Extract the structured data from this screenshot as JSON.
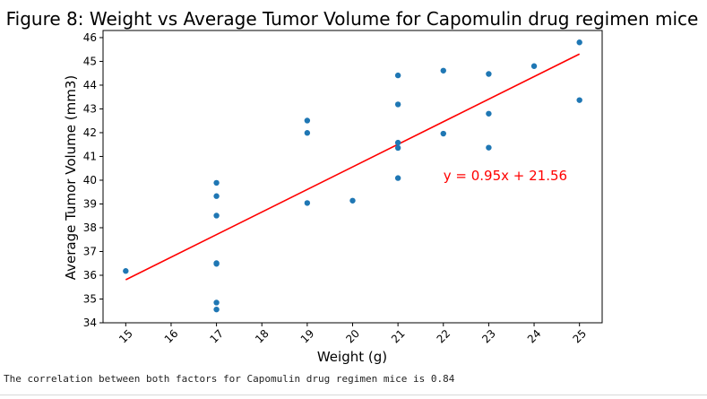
{
  "chart_data": {
    "type": "scatter",
    "title": "Figure 8: Weight vs Average Tumor Volume for Capomulin drug regimen mice",
    "xlabel": "Weight (g)",
    "ylabel": "Average Tumor Volume (mm3)",
    "xlim": [
      14.5,
      25.5
    ],
    "ylim": [
      34,
      46.3
    ],
    "xticks": [
      15,
      16,
      17,
      18,
      19,
      20,
      21,
      22,
      23,
      24,
      25
    ],
    "yticks": [
      34,
      35,
      36,
      37,
      38,
      39,
      40,
      41,
      42,
      43,
      44,
      45,
      46
    ],
    "grid": false,
    "points": [
      {
        "x": 15,
        "y": 36.18
      },
      {
        "x": 17,
        "y": 34.56
      },
      {
        "x": 17,
        "y": 34.85
      },
      {
        "x": 17,
        "y": 36.51
      },
      {
        "x": 17,
        "y": 36.48
      },
      {
        "x": 17,
        "y": 38.51
      },
      {
        "x": 17,
        "y": 39.33
      },
      {
        "x": 17,
        "y": 39.89
      },
      {
        "x": 19,
        "y": 39.04
      },
      {
        "x": 19,
        "y": 41.99
      },
      {
        "x": 19,
        "y": 42.51
      },
      {
        "x": 20,
        "y": 39.14
      },
      {
        "x": 21,
        "y": 40.09
      },
      {
        "x": 21,
        "y": 41.36
      },
      {
        "x": 21,
        "y": 41.58
      },
      {
        "x": 21,
        "y": 43.19
      },
      {
        "x": 21,
        "y": 44.41
      },
      {
        "x": 22,
        "y": 41.96
      },
      {
        "x": 22,
        "y": 44.61
      },
      {
        "x": 23,
        "y": 41.37
      },
      {
        "x": 23,
        "y": 42.8
      },
      {
        "x": 23,
        "y": 44.47
      },
      {
        "x": 24,
        "y": 44.8
      },
      {
        "x": 25,
        "y": 43.37
      },
      {
        "x": 25,
        "y": 45.8
      }
    ],
    "point_color": "#1f77b4",
    "regression": {
      "slope": 0.95,
      "intercept": 21.56,
      "x_range": [
        15,
        25
      ],
      "color": "#ff0000"
    },
    "annotation": {
      "text": "y = 0.95x + 21.56",
      "x": 22,
      "y": 40.0,
      "color": "#ff0000"
    }
  },
  "console": {
    "output": "The correlation between both factors for Capomulin drug regimen mice is 0.84"
  }
}
